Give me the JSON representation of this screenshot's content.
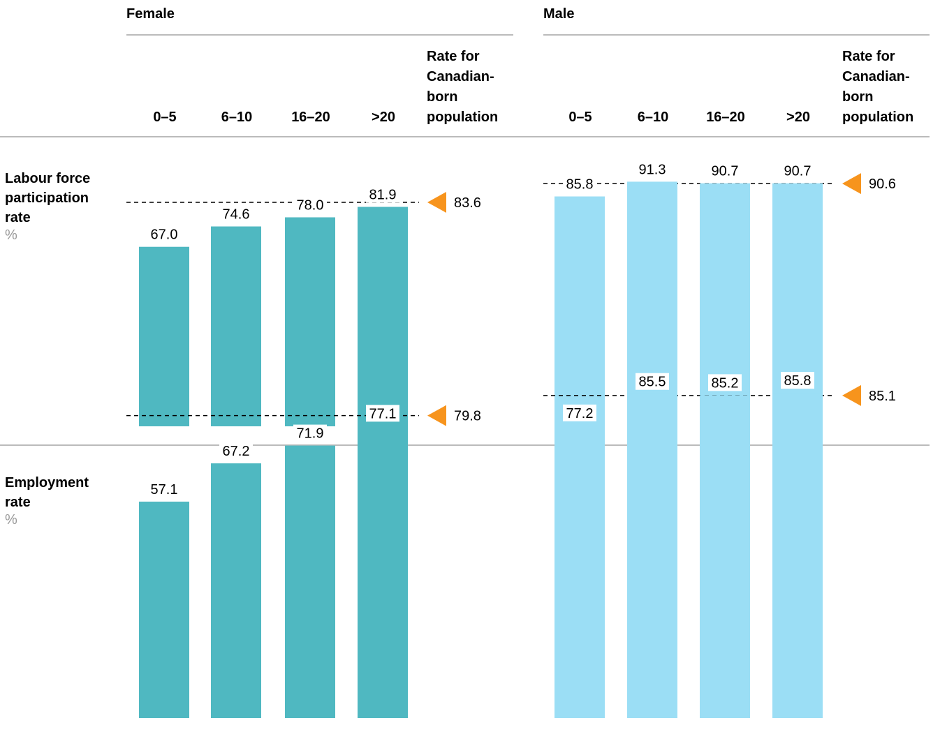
{
  "header": {
    "groups": [
      "Female",
      "Male"
    ],
    "columns": [
      "0–5",
      "6–10",
      "16–20",
      ">20"
    ],
    "reference_label": "Rate for Canadian-born population",
    "reference_label_lines": [
      "Rate for",
      "Canadian-",
      "born",
      "population"
    ]
  },
  "rows": [
    {
      "title_lines": [
        "Labour force",
        "participation",
        "rate"
      ],
      "unit": "%"
    },
    {
      "title_lines": [
        "Employment",
        "rate"
      ],
      "unit": "%"
    }
  ],
  "colors": {
    "female_bar": "#4FB8C1",
    "male_bar": "#9BDEF5",
    "reference_marker": "#F7941D",
    "rule": "#BBBBBB",
    "dashed_line": "#000000"
  },
  "chart_data": {
    "type": "bar",
    "categories": [
      "0–5",
      "6–10",
      "16–20",
      ">20"
    ],
    "panels": [
      {
        "row": "Labour force participation rate",
        "group": "Female",
        "values": [
          67.0,
          74.6,
          78.0,
          81.9
        ],
        "reference": 83.6
      },
      {
        "row": "Labour force participation rate",
        "group": "Male",
        "values": [
          85.8,
          91.3,
          90.7,
          90.7
        ],
        "reference": 90.6
      },
      {
        "row": "Employment rate",
        "group": "Female",
        "values": [
          57.1,
          67.2,
          71.9,
          77.1
        ],
        "reference": 79.8
      },
      {
        "row": "Employment rate",
        "group": "Male",
        "values": [
          77.2,
          85.5,
          85.2,
          85.8
        ],
        "reference": 85.1
      }
    ],
    "ylim": [
      0,
      100
    ],
    "grid": false,
    "legend": "none"
  }
}
